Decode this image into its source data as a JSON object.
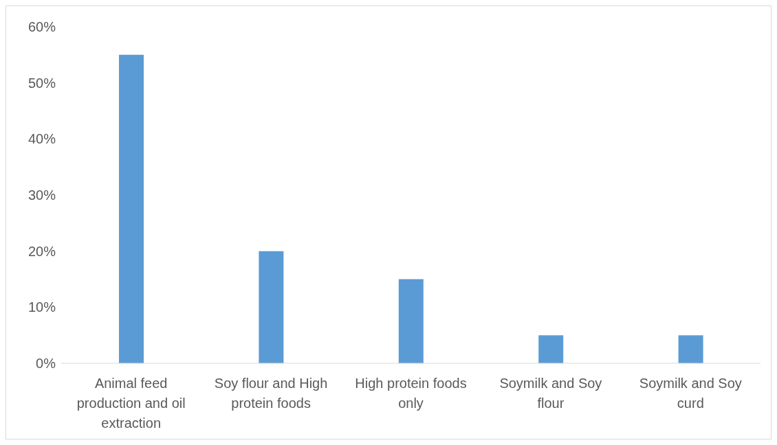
{
  "chart_data": {
    "type": "bar",
    "categories": [
      "Animal feed production and oil extraction",
      "Soy flour and High protein foods",
      "High protein foods only",
      "Soymilk and Soy flour",
      "Soymilk and Soy curd"
    ],
    "values": [
      55,
      20,
      15,
      5,
      5
    ],
    "color": "#5b9bd5",
    "ylim": [
      0,
      60
    ],
    "yticks": [
      {
        "value": 0,
        "label": "0%"
      },
      {
        "value": 10,
        "label": "10%"
      },
      {
        "value": 20,
        "label": "20%"
      },
      {
        "value": 30,
        "label": "30%"
      },
      {
        "value": 40,
        "label": "40%"
      },
      {
        "value": 50,
        "label": "50%"
      },
      {
        "value": 60,
        "label": "60%"
      }
    ],
    "grid": false
  }
}
